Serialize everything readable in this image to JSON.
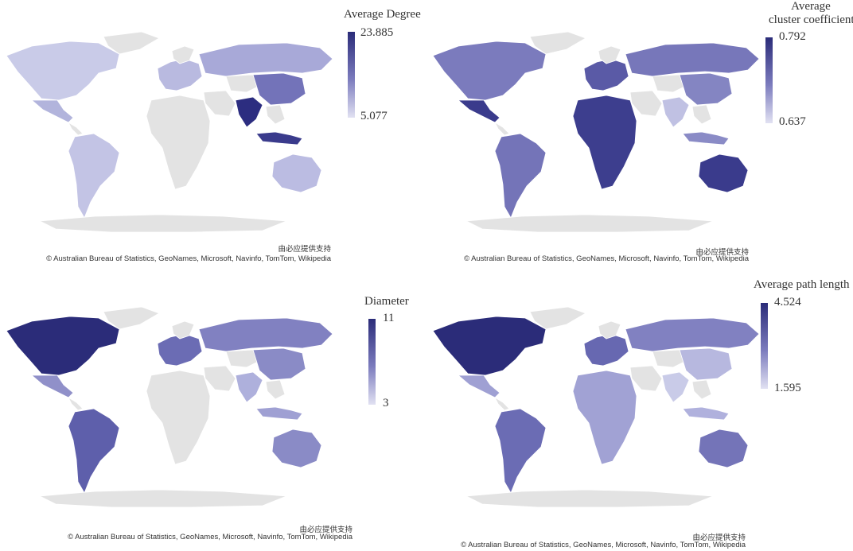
{
  "panels": [
    {
      "id": "p1",
      "legend_title": "Average Degree",
      "legend_max": "23.885",
      "legend_min": "5.077"
    },
    {
      "id": "p2",
      "legend_title_line1": "Average",
      "legend_title_line2": "cluster coefficient",
      "legend_max": "0.792",
      "legend_min": "0.637"
    },
    {
      "id": "p3",
      "legend_title": "Diameter",
      "legend_max": "11",
      "legend_min": "3"
    },
    {
      "id": "p4",
      "legend_title": "Average path length",
      "legend_max": "4.524",
      "legend_min": "1.595"
    }
  ],
  "credit_line1": "由必应提供支持",
  "credit_line2": "© Australian Bureau of Statistics, GeoNames, Microsoft, Navinfo, TomTom, Wikipedia",
  "colors": {
    "dark": "#2b2c79",
    "mid": "#6f6fb8",
    "light": "#c9c9e8",
    "nodata": "#e3e3e3"
  },
  "maps": [
    {
      "na": "#c9cbe8",
      "mexico": "#b2b4dc",
      "sa": "#c3c4e5",
      "europe": "#b9bae0",
      "russia": "#a8a9d8",
      "africa": "#e3e3e3",
      "india": "#2c2d80",
      "china": "#7373b9",
      "indonesia": "#3a3b8c",
      "australia": "#bbbce2"
    },
    {
      "na": "#7b7bbd",
      "mexico": "#3a3b8c",
      "sa": "#7474b8",
      "europe": "#5a5aa6",
      "russia": "#7777ba",
      "africa": "#3d3e8e",
      "india": "#c0c1e3",
      "china": "#8485c2",
      "indonesia": "#8a8bc6",
      "australia": "#3a3b8c"
    },
    {
      "na": "#2b2c79",
      "mexico": "#9090c9",
      "sa": "#5e5fab",
      "europe": "#6b6cb4",
      "russia": "#8181c1",
      "africa": "#e3e3e3",
      "india": "#aeb0dc",
      "china": "#8a8bc6",
      "indonesia": "#9fa0d3",
      "australia": "#8a8bc6"
    },
    {
      "na": "#2b2c79",
      "mexico": "#9fa0d3",
      "sa": "#6b6cb4",
      "europe": "#6768b1",
      "russia": "#8181c1",
      "africa": "#a1a2d4",
      "india": "#c9cbe8",
      "china": "#b7b8df",
      "indonesia": "#b0b1dd",
      "australia": "#7474b8"
    }
  ]
}
